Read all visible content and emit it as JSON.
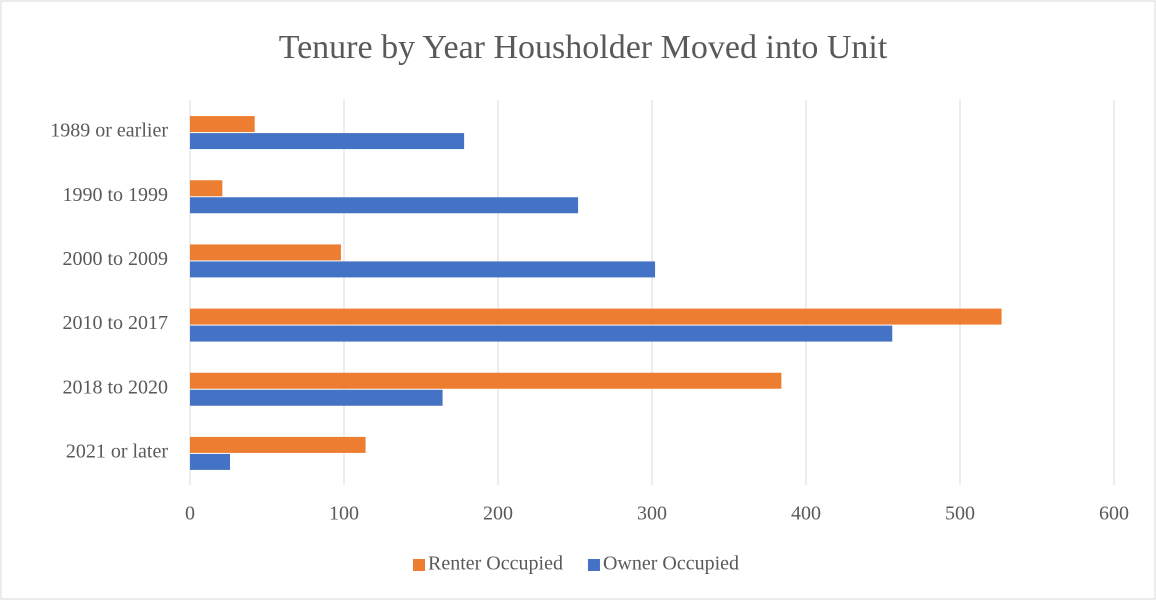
{
  "chart_data": {
    "type": "hbar",
    "title": "Tenure by Year Housholder Moved into Unit",
    "categories": [
      "1989 or earlier",
      "1990 to 1999",
      "2000 to 2009",
      "2010 to 2017",
      "2018 to 2020",
      "2021 or later"
    ],
    "series": [
      {
        "name": "Renter Occupied",
        "color": "#ed7d31",
        "values": [
          42,
          21,
          98,
          527,
          384,
          114
        ]
      },
      {
        "name": "Owner Occupied",
        "color": "#4472c4",
        "values": [
          178,
          252,
          302,
          456,
          164,
          26
        ]
      }
    ],
    "xlim": [
      0,
      600
    ],
    "xticks": [
      0,
      100,
      200,
      300,
      400,
      500,
      600
    ],
    "grid": true,
    "legend": "bottom"
  }
}
